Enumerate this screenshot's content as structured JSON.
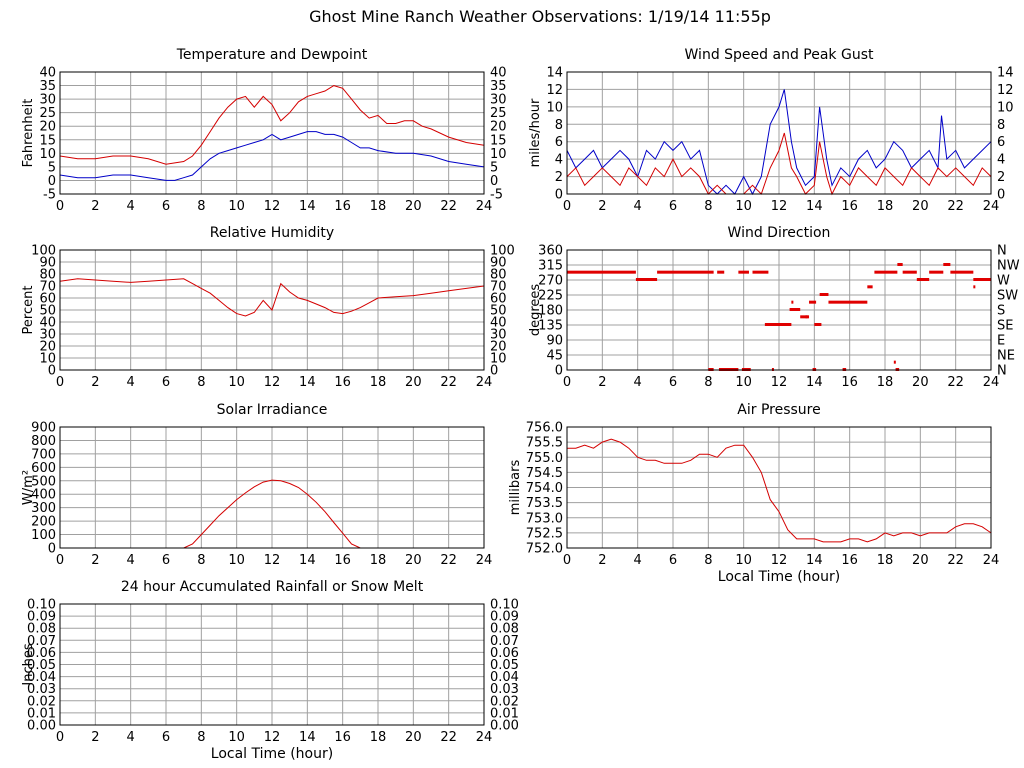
{
  "page": {
    "title": "Ghost Mine Ranch Weather Observations: 1/19/14 11:55p"
  },
  "chart_data": [
    {
      "id": "temp",
      "type": "line",
      "title": "Temperature and Dewpoint",
      "ylabel": "Fahrenheit",
      "xlabel": "",
      "xlim": [
        0,
        24
      ],
      "ylim": [
        -5,
        40
      ],
      "xticks": [
        0,
        2,
        4,
        6,
        8,
        10,
        12,
        14,
        16,
        18,
        20,
        22,
        24
      ],
      "yticks": [
        -5,
        0,
        5,
        10,
        15,
        20,
        25,
        30,
        35,
        40
      ],
      "right_ticks": [
        "-5",
        "0",
        "5",
        "10",
        "15",
        "20",
        "25",
        "30",
        "35",
        "40"
      ],
      "grid": true,
      "series": [
        {
          "color": "#d40000",
          "x": [
            0,
            1,
            2,
            3,
            4,
            5,
            6,
            7,
            7.5,
            8,
            8.5,
            9,
            9.5,
            10,
            10.5,
            11,
            11.5,
            12,
            12.5,
            13,
            13.5,
            14,
            14.5,
            15,
            15.5,
            16,
            16.5,
            17,
            17.5,
            18,
            18.5,
            19,
            19.5,
            20,
            20.5,
            21,
            22,
            23,
            24
          ],
          "y": [
            9,
            8,
            8,
            9,
            9,
            8,
            6,
            7,
            9,
            13,
            18,
            23,
            27,
            30,
            31,
            27,
            31,
            28,
            22,
            25,
            29,
            31,
            32,
            33,
            35,
            34,
            30,
            26,
            23,
            24,
            21,
            21,
            22,
            22,
            20,
            19,
            16,
            14,
            13
          ]
        },
        {
          "color": "#0000c8",
          "x": [
            0,
            1,
            2,
            3,
            4,
            5,
            6,
            6.5,
            7,
            7.5,
            8,
            8.5,
            9,
            9.5,
            10,
            10.5,
            11,
            11.5,
            12,
            12.5,
            13,
            13.5,
            14,
            14.5,
            15,
            15.5,
            16,
            16.5,
            17,
            17.5,
            18,
            19,
            20,
            21,
            22,
            23,
            24
          ],
          "y": [
            2,
            1,
            1,
            2,
            2,
            1,
            0,
            0,
            1,
            2,
            5,
            8,
            10,
            11,
            12,
            13,
            14,
            15,
            17,
            15,
            16,
            17,
            18,
            18,
            17,
            17,
            16,
            14,
            12,
            12,
            11,
            10,
            10,
            9,
            7,
            6,
            5
          ]
        }
      ]
    },
    {
      "id": "rh",
      "type": "line",
      "title": "Relative Humidity",
      "ylabel": "Percent",
      "xlabel": "",
      "xlim": [
        0,
        24
      ],
      "ylim": [
        0,
        100
      ],
      "xticks": [
        0,
        2,
        4,
        6,
        8,
        10,
        12,
        14,
        16,
        18,
        20,
        22,
        24
      ],
      "yticks": [
        0,
        10,
        20,
        30,
        40,
        50,
        60,
        70,
        80,
        90,
        100
      ],
      "right_ticks": [
        "0",
        "10",
        "20",
        "30",
        "40",
        "50",
        "60",
        "70",
        "80",
        "90",
        "100"
      ],
      "grid": true,
      "series": [
        {
          "color": "#d40000",
          "x": [
            0,
            1,
            2,
            3,
            4,
            5,
            6,
            7,
            7.5,
            8,
            8.5,
            9,
            9.5,
            10,
            10.5,
            11,
            11.5,
            12,
            12.5,
            13,
            13.5,
            14,
            14.5,
            15,
            15.5,
            16,
            16.5,
            17,
            17.5,
            18,
            19,
            20,
            21,
            22,
            23,
            24
          ],
          "y": [
            74,
            76,
            75,
            74,
            73,
            74,
            75,
            76,
            72,
            68,
            64,
            58,
            52,
            47,
            45,
            48,
            58,
            50,
            72,
            65,
            60,
            58,
            55,
            52,
            48,
            47,
            49,
            52,
            56,
            60,
            61,
            62,
            64,
            66,
            68,
            70
          ]
        }
      ]
    },
    {
      "id": "solar",
      "type": "line",
      "title": "Solar Irradiance",
      "ylabel": "W/m²",
      "xlabel": "",
      "xlim": [
        0,
        24
      ],
      "ylim": [
        0,
        900
      ],
      "xticks": [
        0,
        2,
        4,
        6,
        8,
        10,
        12,
        14,
        16,
        18,
        20,
        22,
        24
      ],
      "yticks": [
        0,
        100,
        200,
        300,
        400,
        500,
        600,
        700,
        800,
        900
      ],
      "grid": true,
      "series": [
        {
          "color": "#d40000",
          "x": [
            0,
            7,
            7.5,
            8,
            8.5,
            9,
            9.5,
            10,
            10.5,
            11,
            11.5,
            12,
            12.5,
            13,
            13.5,
            14,
            14.5,
            15,
            15.5,
            16,
            16.5,
            17,
            24
          ],
          "y": [
            0,
            0,
            30,
            100,
            170,
            240,
            300,
            360,
            410,
            455,
            490,
            505,
            500,
            480,
            450,
            400,
            340,
            270,
            190,
            110,
            30,
            0,
            0
          ]
        }
      ]
    },
    {
      "id": "rain",
      "type": "line",
      "title": "24 hour Accumulated Rainfall or Snow Melt",
      "ylabel": "Inches",
      "xlabel": "Local Time (hour)",
      "xlim": [
        0,
        24
      ],
      "ylim": [
        0,
        0.1
      ],
      "xticks": [
        0,
        2,
        4,
        6,
        8,
        10,
        12,
        14,
        16,
        18,
        20,
        22,
        24
      ],
      "yticks": [
        0,
        0.01,
        0.02,
        0.03,
        0.04,
        0.05,
        0.06,
        0.07,
        0.08,
        0.09,
        0.1
      ],
      "ytick_labels": [
        "0.00",
        "0.01",
        "0.02",
        "0.03",
        "0.04",
        "0.05",
        "0.06",
        "0.07",
        "0.08",
        "0.09",
        "0.10"
      ],
      "right_ticks": [
        "0.00",
        "0.01",
        "0.02",
        "0.03",
        "0.04",
        "0.05",
        "0.06",
        "0.07",
        "0.08",
        "0.09",
        "0.10"
      ],
      "grid": true,
      "series": [
        {
          "color": "#d40000",
          "x": [
            0,
            24
          ],
          "y": [
            0,
            0
          ]
        }
      ]
    },
    {
      "id": "wind",
      "type": "line",
      "title": "Wind Speed and Peak Gust",
      "ylabel": "miles/hour",
      "xlabel": "",
      "xlim": [
        0,
        24
      ],
      "ylim": [
        0,
        14
      ],
      "xticks": [
        0,
        2,
        4,
        6,
        8,
        10,
        12,
        14,
        16,
        18,
        20,
        22,
        24
      ],
      "yticks": [
        0,
        2,
        4,
        6,
        8,
        10,
        12,
        14
      ],
      "right_ticks": [
        "0",
        "2",
        "4",
        "6",
        "8",
        "10",
        "12",
        "14"
      ],
      "grid": true,
      "series": [
        {
          "color": "#0000c8",
          "x": [
            0,
            0.5,
            1,
            1.5,
            2,
            2.5,
            3,
            3.5,
            4,
            4.5,
            5,
            5.5,
            6,
            6.5,
            7,
            7.5,
            8,
            8.5,
            9,
            9.5,
            10,
            10.5,
            11,
            11.5,
            12,
            12.3,
            12.7,
            13,
            13.5,
            14,
            14.3,
            14.7,
            15,
            15.5,
            16,
            16.5,
            17,
            17.5,
            18,
            18.5,
            19,
            19.5,
            20,
            20.5,
            21,
            21.2,
            21.5,
            22,
            22.5,
            23,
            23.5,
            24
          ],
          "y": [
            5,
            3,
            4,
            5,
            3,
            4,
            5,
            4,
            2,
            5,
            4,
            6,
            5,
            6,
            4,
            5,
            1,
            0,
            1,
            0,
            2,
            0,
            2,
            8,
            10,
            12,
            6,
            3,
            1,
            2,
            10,
            4,
            1,
            3,
            2,
            4,
            5,
            3,
            4,
            6,
            5,
            3,
            4,
            5,
            3,
            9,
            4,
            5,
            3,
            4,
            5,
            6
          ]
        },
        {
          "color": "#d40000",
          "x": [
            0,
            0.5,
            1,
            1.5,
            2,
            2.5,
            3,
            3.5,
            4,
            4.5,
            5,
            5.5,
            6,
            6.5,
            7,
            7.5,
            8,
            8.5,
            9,
            9.5,
            10,
            10.5,
            11,
            11.5,
            12,
            12.3,
            12.7,
            13,
            13.5,
            14,
            14.3,
            14.7,
            15,
            15.5,
            16,
            16.5,
            17,
            17.5,
            18,
            18.5,
            19,
            19.5,
            20,
            20.5,
            21,
            21.5,
            22,
            22.5,
            23,
            23.5,
            24
          ],
          "y": [
            2,
            3,
            1,
            2,
            3,
            2,
            1,
            3,
            2,
            1,
            3,
            2,
            4,
            2,
            3,
            2,
            0,
            1,
            0,
            0,
            0,
            1,
            0,
            3,
            5,
            7,
            3,
            2,
            0,
            1,
            6,
            2,
            0,
            2,
            1,
            3,
            2,
            1,
            3,
            2,
            1,
            3,
            2,
            1,
            3,
            2,
            3,
            2,
            1,
            3,
            2
          ]
        }
      ]
    },
    {
      "id": "winddir",
      "type": "scatter",
      "title": "Wind Direction",
      "ylabel": "degrees",
      "xlabel": "",
      "xlim": [
        0,
        24
      ],
      "ylim": [
        0,
        360
      ],
      "xticks": [
        0,
        2,
        4,
        6,
        8,
        10,
        12,
        14,
        16,
        18,
        20,
        22,
        24
      ],
      "yticks": [
        0,
        45,
        90,
        135,
        180,
        225,
        270,
        315,
        360
      ],
      "right_ticks": [
        "N",
        "NE",
        "E",
        "SE",
        "S",
        "SW",
        "W",
        "NW",
        "N"
      ],
      "grid": true,
      "segments": [
        {
          "x0": 0,
          "x1": 3.9,
          "y": 292
        },
        {
          "x0": 3.9,
          "x1": 5.1,
          "y": 270
        },
        {
          "x0": 5.1,
          "x1": 8.3,
          "y": 292
        },
        {
          "x0": 8.5,
          "x1": 8.9,
          "y": 292
        },
        {
          "x0": 9.7,
          "x1": 10.3,
          "y": 292
        },
        {
          "x0": 10.5,
          "x1": 11.4,
          "y": 292
        },
        {
          "x0": 11.2,
          "x1": 12.7,
          "y": 135
        },
        {
          "x0": 12.6,
          "x1": 13.2,
          "y": 180
        },
        {
          "x0": 13.2,
          "x1": 13.7,
          "y": 158
        },
        {
          "x0": 13.7,
          "x1": 14.1,
          "y": 202
        },
        {
          "x0": 14.0,
          "x1": 14.4,
          "y": 135
        },
        {
          "x0": 14.3,
          "x1": 14.8,
          "y": 225
        },
        {
          "x0": 14.8,
          "x1": 17.0,
          "y": 202
        },
        {
          "x0": 17.0,
          "x1": 17.3,
          "y": 248
        },
        {
          "x0": 17.4,
          "x1": 18.7,
          "y": 292
        },
        {
          "x0": 18.7,
          "x1": 19.0,
          "y": 315
        },
        {
          "x0": 19.0,
          "x1": 19.8,
          "y": 292
        },
        {
          "x0": 19.8,
          "x1": 20.5,
          "y": 270
        },
        {
          "x0": 20.5,
          "x1": 21.3,
          "y": 292
        },
        {
          "x0": 21.3,
          "x1": 21.7,
          "y": 315
        },
        {
          "x0": 21.7,
          "x1": 23.0,
          "y": 292
        },
        {
          "x0": 23.0,
          "x1": 24.0,
          "y": 270
        },
        {
          "x0": 8.0,
          "x1": 8.3,
          "y": 0
        },
        {
          "x0": 8.6,
          "x1": 9.7,
          "y": 0
        },
        {
          "x0": 9.9,
          "x1": 10.4,
          "y": 0
        },
        {
          "x0": 11.6,
          "x1": 11.7,
          "y": 0
        },
        {
          "x0": 13.9,
          "x1": 14.1,
          "y": 0
        },
        {
          "x0": 15.6,
          "x1": 15.8,
          "y": 0
        },
        {
          "x0": 18.6,
          "x1": 18.8,
          "y": 0
        },
        {
          "x0": 18.5,
          "x1": 18.6,
          "y": 22
        },
        {
          "x0": 23.0,
          "x1": 23.1,
          "y": 248
        },
        {
          "x0": 12.7,
          "x1": 12.8,
          "y": 202
        },
        {
          "x0": 13.5,
          "x1": 13.6,
          "y": 158
        }
      ]
    },
    {
      "id": "pressure",
      "type": "line",
      "title": "Air Pressure",
      "ylabel": "millibars",
      "xlabel": "Local Time (hour)",
      "xlim": [
        0,
        24
      ],
      "ylim": [
        752.0,
        756.0
      ],
      "xticks": [
        0,
        2,
        4,
        6,
        8,
        10,
        12,
        14,
        16,
        18,
        20,
        22,
        24
      ],
      "yticks": [
        752.0,
        752.5,
        753.0,
        753.5,
        754.0,
        754.5,
        755.0,
        755.5,
        756.0
      ],
      "ytick_labels": [
        "752.0",
        "752.5",
        "753.0",
        "753.5",
        "754.0",
        "754.5",
        "755.0",
        "755.5",
        "756.0"
      ],
      "grid": true,
      "series": [
        {
          "color": "#d40000",
          "x": [
            0,
            0.5,
            1,
            1.5,
            2,
            2.5,
            3,
            3.5,
            4,
            4.5,
            5,
            5.5,
            6,
            6.5,
            7,
            7.5,
            8,
            8.5,
            9,
            9.5,
            10,
            10.5,
            11,
            11.5,
            12,
            12.5,
            13,
            13.5,
            14,
            14.5,
            15,
            15.5,
            16,
            16.5,
            17,
            17.5,
            18,
            18.5,
            19,
            19.5,
            20,
            20.5,
            21,
            21.5,
            22,
            22.5,
            23,
            23.5,
            24
          ],
          "y": [
            755.3,
            755.3,
            755.4,
            755.3,
            755.5,
            755.6,
            755.5,
            755.3,
            755.0,
            754.9,
            754.9,
            754.8,
            754.8,
            754.8,
            754.9,
            755.1,
            755.1,
            755.0,
            755.3,
            755.4,
            755.4,
            755.0,
            754.5,
            753.6,
            753.2,
            752.6,
            752.3,
            752.3,
            752.3,
            752.2,
            752.2,
            752.2,
            752.3,
            752.3,
            752.2,
            752.3,
            752.5,
            752.4,
            752.5,
            752.5,
            752.4,
            752.5,
            752.5,
            752.5,
            752.7,
            752.8,
            752.8,
            752.7,
            752.5
          ]
        }
      ]
    }
  ]
}
